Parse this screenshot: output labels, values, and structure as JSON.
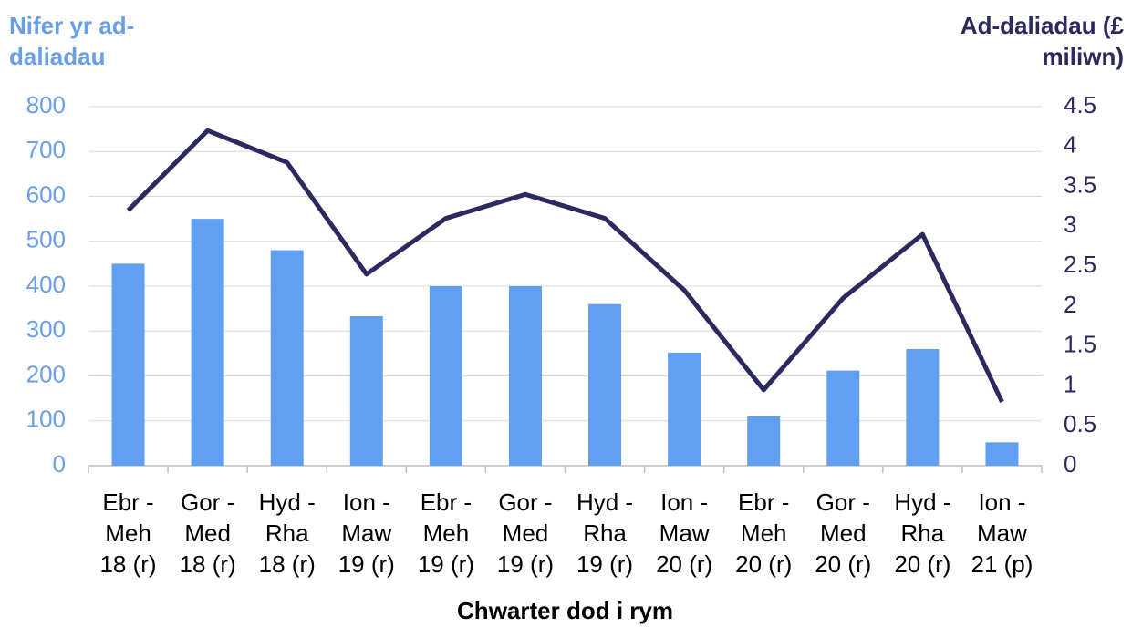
{
  "chart_data": {
    "type": "bar-line",
    "y_title": [
      "Nifer yr ad-",
      "daliadau"
    ],
    "y2_title": [
      "Ad-daliadau (£",
      "miliwn)"
    ],
    "x_title": "Chwarter dod i rym",
    "categories": [
      [
        "Ebr -",
        "Meh",
        "18 (r)"
      ],
      [
        "Gor -",
        "Med",
        "18 (r)"
      ],
      [
        "Hyd -",
        "Rha",
        "18 (r)"
      ],
      [
        "Ion -",
        "Maw",
        "19 (r)"
      ],
      [
        "Ebr -",
        "Meh",
        "19 (r)"
      ],
      [
        "Gor -",
        "Med",
        "19 (r)"
      ],
      [
        "Hyd -",
        "Rha",
        "19 (r)"
      ],
      [
        "Ion -",
        "Maw",
        "20 (r)"
      ],
      [
        "Ebr -",
        "Meh",
        "20 (r)"
      ],
      [
        "Gor -",
        "Med",
        "20 (r)"
      ],
      [
        "Hyd -",
        "Rha",
        "20 (r)"
      ],
      [
        "Ion -",
        "Maw",
        "21 (p)"
      ]
    ],
    "series": [
      {
        "type": "bar",
        "color": "#619ff2",
        "values": [
          450,
          550,
          480,
          333,
          400,
          400,
          360,
          252,
          110,
          212,
          260,
          52
        ]
      },
      {
        "type": "line",
        "axis": "y2",
        "color": "#2a2a5e",
        "values": [
          3.2,
          4.2,
          3.8,
          2.4,
          3.1,
          3.4,
          3.1,
          2.2,
          0.95,
          2.1,
          2.9,
          0.8
        ]
      }
    ],
    "ylim": [
      0,
      800
    ],
    "yticks": [
      0,
      100,
      200,
      300,
      400,
      500,
      600,
      700,
      800
    ],
    "y2lim": [
      0,
      4.5
    ],
    "y2ticks": [
      0,
      0.5,
      1,
      1.5,
      2,
      2.5,
      3,
      3.5,
      4,
      4.5
    ],
    "grid": true
  }
}
